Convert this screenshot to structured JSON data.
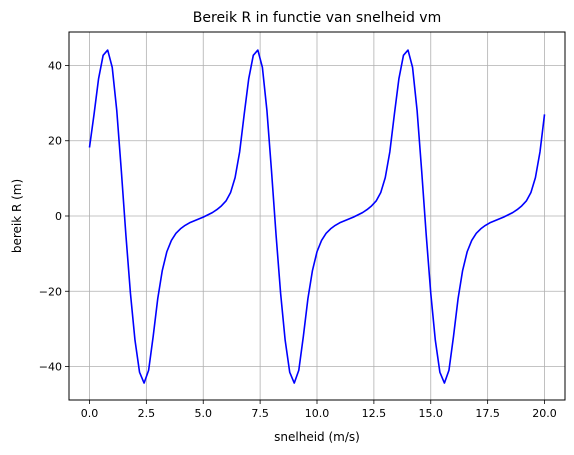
{
  "chart_data": {
    "type": "line",
    "title": "Bereik R in functie van snelheid vm",
    "xlabel": "snelheid (m/s)",
    "ylabel": "bereik R (m)",
    "xlim": [
      -0.9,
      20.9
    ],
    "ylim": [
      -48.9,
      48.9
    ],
    "grid": true,
    "xticks": [
      0.0,
      2.5,
      5.0,
      7.5,
      10.0,
      12.5,
      15.0,
      17.5,
      20.0
    ],
    "xtick_labels": [
      "0.0",
      "2.5",
      "5.0",
      "7.5",
      "10.0",
      "12.5",
      "15.0",
      "17.5",
      "20.0"
    ],
    "yticks": [
      -40,
      -20,
      0,
      20,
      40
    ],
    "ytick_labels": [
      "−40",
      "−20",
      "0",
      "20",
      "40"
    ],
    "series": [
      {
        "color": "#0000ff",
        "x": [
          0.0,
          0.2,
          0.4,
          0.6,
          0.8,
          1.0,
          1.2,
          1.4,
          1.6,
          1.8,
          2.0,
          2.2,
          2.4,
          2.6,
          2.8,
          3.0,
          3.2,
          3.4,
          3.6,
          3.8,
          4.0,
          4.2,
          4.4,
          4.6,
          4.8,
          5.0,
          5.2,
          5.4,
          5.6,
          5.8,
          6.0,
          6.2,
          6.4,
          6.6,
          6.8,
          7.0,
          7.2,
          7.4,
          7.6,
          7.8,
          8.0,
          8.2,
          8.4,
          8.6,
          8.8,
          9.0,
          9.2,
          9.4,
          9.6,
          9.8,
          10.0,
          10.2,
          10.4,
          10.6,
          10.8,
          11.0,
          11.2,
          11.4,
          11.6,
          11.8,
          12.0,
          12.2,
          12.4,
          12.6,
          12.8,
          13.0,
          13.2,
          13.4,
          13.6,
          13.8,
          14.0,
          14.2,
          14.4,
          14.6,
          14.8,
          15.0,
          15.2,
          15.4,
          15.6,
          15.8,
          16.0,
          16.2,
          16.4,
          16.6,
          16.8,
          17.0,
          17.2,
          17.4,
          17.6,
          17.8,
          18.0,
          18.2,
          18.4,
          18.6,
          18.8,
          19.0,
          19.2,
          19.4,
          19.6,
          19.8,
          20.0
        ],
        "y": [
          18.2,
          27.0,
          36.5,
          42.7,
          44.1,
          39.5,
          28.0,
          12.0,
          -5.0,
          -20.5,
          -33.0,
          -41.5,
          -44.4,
          -41.0,
          -32.0,
          -22.0,
          -14.5,
          -9.5,
          -6.5,
          -4.6,
          -3.4,
          -2.5,
          -1.8,
          -1.3,
          -0.8,
          -0.3,
          0.3,
          0.9,
          1.7,
          2.7,
          4.0,
          6.2,
          10.2,
          17.0,
          27.0,
          36.5,
          42.7,
          44.1,
          39.5,
          28.0,
          12.0,
          -5.0,
          -20.5,
          -33.0,
          -41.5,
          -44.4,
          -41.0,
          -32.0,
          -22.0,
          -14.5,
          -9.5,
          -6.5,
          -4.6,
          -3.4,
          -2.5,
          -1.8,
          -1.3,
          -0.8,
          -0.3,
          0.3,
          0.9,
          1.7,
          2.7,
          4.0,
          6.2,
          10.2,
          17.0,
          27.0,
          36.5,
          42.7,
          44.1,
          39.5,
          28.0,
          12.0,
          -5.0,
          -20.5,
          -33.0,
          -41.5,
          -44.4,
          -41.0,
          -32.0,
          -22.0,
          -14.5,
          -9.5,
          -6.5,
          -4.6,
          -3.4,
          -2.5,
          -1.8,
          -1.3,
          -0.8,
          -0.3,
          0.3,
          0.9,
          1.7,
          2.7,
          4.0,
          6.2,
          10.2,
          17.0,
          27.0
        ]
      }
    ]
  }
}
